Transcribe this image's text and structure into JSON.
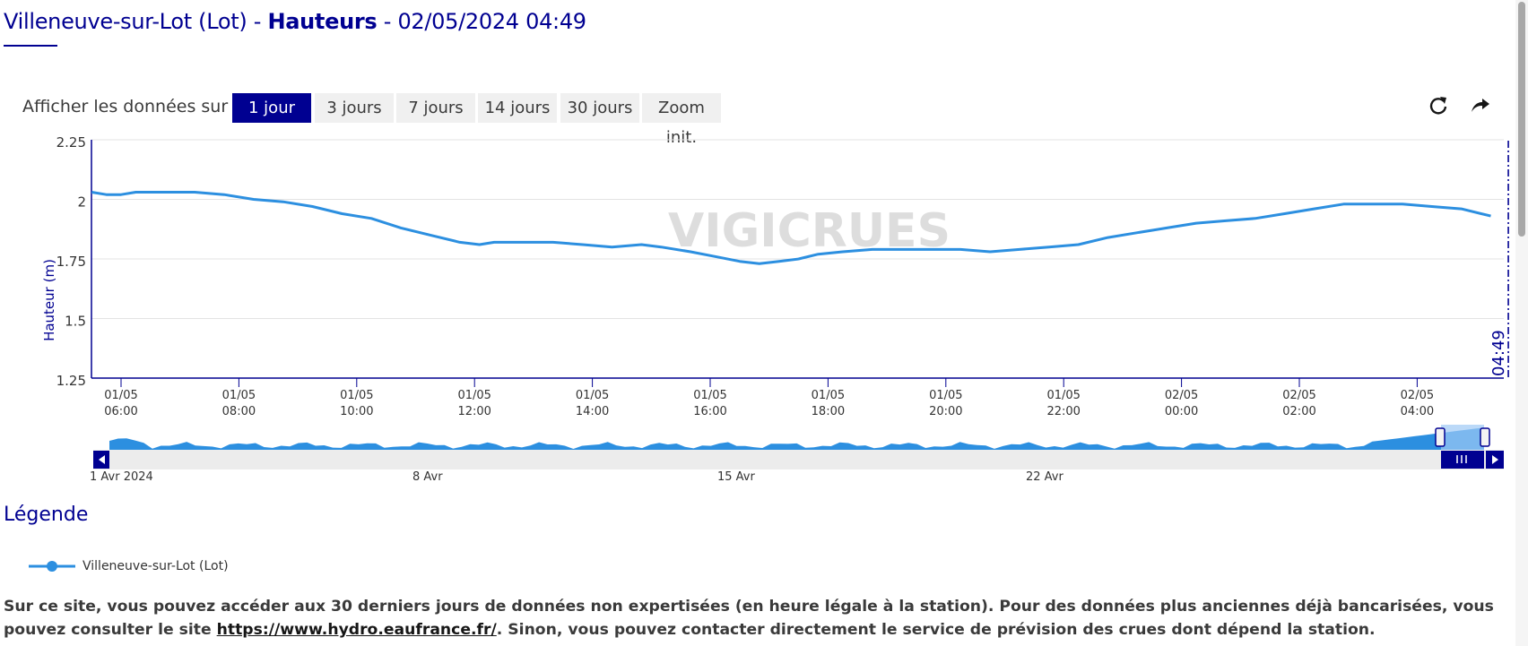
{
  "header": {
    "station": "Villeneuve-sur-Lot (Lot)",
    "sep1": " - ",
    "measure": "Hauteurs",
    "sep2": " - ",
    "datetime": "02/05/2024 04:49"
  },
  "range_selector": {
    "label": "Afficher les données sur :",
    "buttons": [
      "1 jour",
      "3 jours",
      "7 jours",
      "14 jours",
      "30 jours",
      "Zoom init."
    ],
    "active": "1 jour"
  },
  "toolbar": {
    "refresh_icon": "refresh-icon",
    "share_icon": "share-arrow-icon"
  },
  "chart_data": {
    "type": "line",
    "ylabel": "Hauteur (m)",
    "ylim": [
      1.25,
      2.25
    ],
    "yticks": [
      "2.25",
      "2",
      "1.75",
      "1.5",
      "1.25"
    ],
    "xticks": [
      {
        "date": "01/05",
        "time": "06:00"
      },
      {
        "date": "01/05",
        "time": "08:00"
      },
      {
        "date": "01/05",
        "time": "10:00"
      },
      {
        "date": "01/05",
        "time": "12:00"
      },
      {
        "date": "01/05",
        "time": "14:00"
      },
      {
        "date": "01/05",
        "time": "16:00"
      },
      {
        "date": "01/05",
        "time": "18:00"
      },
      {
        "date": "01/05",
        "time": "20:00"
      },
      {
        "date": "01/05",
        "time": "22:00"
      },
      {
        "date": "02/05",
        "time": "00:00"
      },
      {
        "date": "02/05",
        "time": "02:00"
      },
      {
        "date": "02/05",
        "time": "04:00"
      }
    ],
    "x_hours_range": [
      "01/05 05:30",
      "02/05 05:30"
    ],
    "current_time_label": "04:49",
    "grid": true,
    "watermark": "VIGICRUES",
    "series": [
      {
        "name": "Villeneuve-sur-Lot (Lot)",
        "color": "#2c8fe0",
        "points": [
          [
            "01/05 05:30",
            2.03
          ],
          [
            "01/05 05:45",
            2.02
          ],
          [
            "01/05 06:00",
            2.02
          ],
          [
            "01/05 06:15",
            2.03
          ],
          [
            "01/05 06:45",
            2.03
          ],
          [
            "01/05 07:15",
            2.03
          ],
          [
            "01/05 07:45",
            2.02
          ],
          [
            "01/05 08:15",
            2.0
          ],
          [
            "01/05 08:45",
            1.99
          ],
          [
            "01/05 09:15",
            1.97
          ],
          [
            "01/05 09:45",
            1.94
          ],
          [
            "01/05 10:15",
            1.92
          ],
          [
            "01/05 10:45",
            1.88
          ],
          [
            "01/05 11:15",
            1.85
          ],
          [
            "01/05 11:45",
            1.82
          ],
          [
            "01/05 12:05",
            1.81
          ],
          [
            "01/05 12:20",
            1.82
          ],
          [
            "01/05 12:50",
            1.82
          ],
          [
            "01/05 13:20",
            1.82
          ],
          [
            "01/05 13:50",
            1.81
          ],
          [
            "01/05 14:20",
            1.8
          ],
          [
            "01/05 14:50",
            1.81
          ],
          [
            "01/05 15:10",
            1.8
          ],
          [
            "01/05 15:40",
            1.78
          ],
          [
            "01/05 16:05",
            1.76
          ],
          [
            "01/05 16:30",
            1.74
          ],
          [
            "01/05 16:50",
            1.73
          ],
          [
            "01/05 17:10",
            1.74
          ],
          [
            "01/05 17:30",
            1.75
          ],
          [
            "01/05 17:50",
            1.77
          ],
          [
            "01/05 18:15",
            1.78
          ],
          [
            "01/05 18:45",
            1.79
          ],
          [
            "01/05 19:15",
            1.79
          ],
          [
            "01/05 19:45",
            1.79
          ],
          [
            "01/05 20:15",
            1.79
          ],
          [
            "01/05 20:45",
            1.78
          ],
          [
            "01/05 21:15",
            1.79
          ],
          [
            "01/05 21:45",
            1.8
          ],
          [
            "01/05 22:15",
            1.81
          ],
          [
            "01/05 22:45",
            1.84
          ],
          [
            "01/05 23:15",
            1.86
          ],
          [
            "01/05 23:45",
            1.88
          ],
          [
            "02/05 00:15",
            1.9
          ],
          [
            "02/05 00:45",
            1.91
          ],
          [
            "02/05 01:15",
            1.92
          ],
          [
            "02/05 01:45",
            1.94
          ],
          [
            "02/05 02:15",
            1.96
          ],
          [
            "02/05 02:45",
            1.98
          ],
          [
            "02/05 03:15",
            1.98
          ],
          [
            "02/05 03:45",
            1.98
          ],
          [
            "02/05 04:15",
            1.97
          ],
          [
            "02/05 04:45",
            1.96
          ],
          [
            "02/05 05:15",
            1.93
          ]
        ]
      }
    ],
    "navigator": {
      "labels": [
        "1 Avr 2024",
        "8 Avr",
        "15 Avr",
        "22 Avr"
      ]
    }
  },
  "legend": {
    "title": "Légende",
    "items": [
      "Villeneuve-sur-Lot (Lot)"
    ]
  },
  "footer": {
    "text_before": "Sur ce site, vous pouvez accéder aux 30 derniers jours de données non expertisées (en heure légale à la station). Pour des données plus anciennes déjà bancarisées, vous pouvez consulter le site ",
    "link": "https://www.hydro.eaufrance.fr/",
    "text_after": ". Sinon, vous pouvez contacter directement le service de prévision des crues dont dépend la station."
  }
}
